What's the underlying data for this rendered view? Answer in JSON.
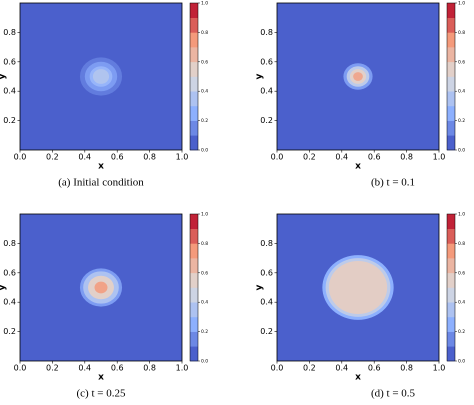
{
  "chart_data": [
    {
      "type": "contour",
      "caption": "(a) Initial condition",
      "xlabel": "x",
      "ylabel": "y",
      "colormap": "coolwarm",
      "background_level": 0.05,
      "center": [
        0.5,
        0.5
      ],
      "radii": [
        0.13,
        0.1,
        0.07,
        0.05
      ],
      "levels": [
        0.12,
        0.2,
        0.28,
        0.36
      ],
      "xlim": [
        0,
        1
      ],
      "ylim": [
        0,
        1
      ],
      "xticks": [
        {
          "value": 0,
          "label": "0.0"
        },
        0.2,
        0.4,
        0.6,
        0.8,
        {
          "value": 1,
          "label": "1.0"
        }
      ],
      "yticks": [
        0.2,
        0.4,
        0.6,
        0.8
      ],
      "clim": [
        0,
        1
      ],
      "cticks": [
        {
          "value": 0,
          "label": "0.0"
        },
        0.2,
        0.4,
        0.6,
        0.8,
        {
          "value": 1,
          "label": "1.0"
        }
      ]
    },
    {
      "type": "contour",
      "caption": "(b) t = 0.1",
      "xlabel": "x",
      "ylabel": "y",
      "colormap": "coolwarm",
      "background_level": 0.05,
      "center": [
        0.5,
        0.5
      ],
      "radii": [
        0.09,
        0.07,
        0.05,
        0.03
      ],
      "levels": [
        0.2,
        0.4,
        0.55,
        0.7
      ],
      "xlim": [
        0,
        1
      ],
      "ylim": [
        0,
        1
      ],
      "xticks": [
        {
          "value": 0,
          "label": "0.0"
        },
        0.2,
        0.4,
        0.6,
        0.8,
        {
          "value": 1,
          "label": "1.0"
        }
      ],
      "yticks": [
        0.2,
        0.4,
        0.6,
        0.8
      ],
      "clim": [
        0,
        1
      ],
      "cticks": [
        {
          "value": 0,
          "label": "0.0"
        },
        0.2,
        0.4,
        0.6,
        0.8,
        {
          "value": 1,
          "label": "1.0"
        }
      ]
    },
    {
      "type": "contour",
      "caption": "(c) t = 0.25",
      "xlabel": "x",
      "ylabel": "y",
      "colormap": "coolwarm",
      "background_level": 0.05,
      "center": [
        0.5,
        0.5
      ],
      "radii": [
        0.13,
        0.11,
        0.08,
        0.04
      ],
      "levels": [
        0.2,
        0.35,
        0.55,
        0.72
      ],
      "xlim": [
        0,
        1
      ],
      "ylim": [
        0,
        1
      ],
      "xticks": [
        {
          "value": 0,
          "label": "0.0"
        },
        0.2,
        0.4,
        0.6,
        0.8,
        {
          "value": 1,
          "label": "1.0"
        }
      ],
      "yticks": [
        0.2,
        0.4,
        0.6,
        0.8
      ],
      "clim": [
        0,
        1
      ],
      "cticks": [
        {
          "value": 0,
          "label": "0.0"
        },
        0.2,
        0.4,
        0.6,
        0.8,
        {
          "value": 1,
          "label": "1.0"
        }
      ]
    },
    {
      "type": "contour",
      "caption": "(d) t = 0.5",
      "xlabel": "x",
      "ylabel": "y",
      "colormap": "coolwarm",
      "background_level": 0.05,
      "center": [
        0.5,
        0.5
      ],
      "radii": [
        0.22,
        0.2,
        0.18
      ],
      "levels": [
        0.25,
        0.4,
        0.56
      ],
      "xlim": [
        0,
        1
      ],
      "ylim": [
        0,
        1
      ],
      "xticks": [
        {
          "value": 0,
          "label": "0.0"
        },
        0.2,
        0.4,
        0.6,
        0.8,
        {
          "value": 1,
          "label": "1.0"
        }
      ],
      "yticks": [
        0.2,
        0.4,
        0.6,
        0.8
      ],
      "clim": [
        0,
        1
      ],
      "cticks": [
        {
          "value": 0,
          "label": "0.0"
        },
        0.2,
        0.4,
        0.6,
        0.8,
        {
          "value": 1,
          "label": "1.0"
        }
      ]
    }
  ]
}
